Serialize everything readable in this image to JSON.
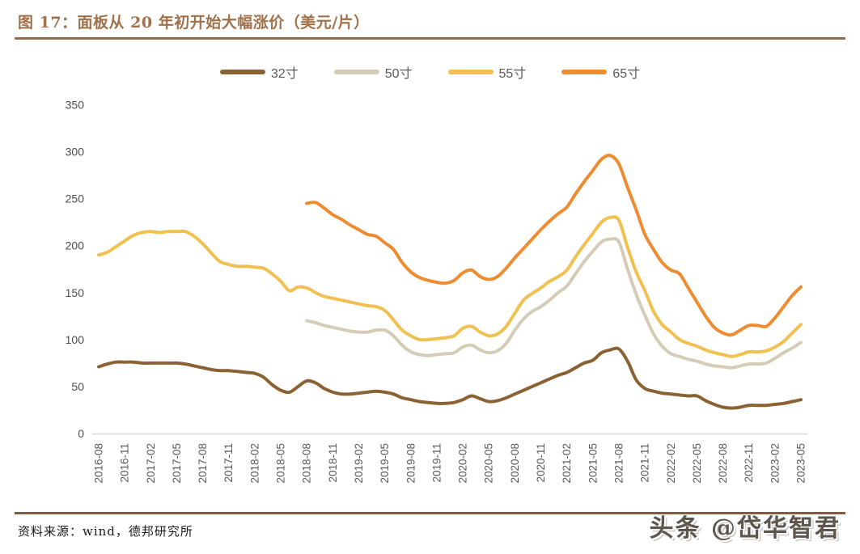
{
  "page": {
    "title": "图 17：面板从 20 年初开始大幅涨价（美元/片）",
    "source_note": "资料来源：wind，德邦研究所",
    "watermark": "头条 @岱华智君"
  },
  "colors": {
    "title_text": "#a0714a",
    "title_rule": "#8f6b4a",
    "footer_rule": "#7e5c43",
    "axis_text": "#595959",
    "axis_line": "#d9d9d9",
    "series_32": "#8b6234",
    "series_50": "#d5ccb6",
    "series_55": "#f0c050",
    "series_65": "#ee8c31"
  },
  "chart_data": {
    "type": "line",
    "title": "图 17：面板从 20 年初开始大幅涨价（美元/片）",
    "xlabel": "",
    "ylabel": "",
    "unit": "美元/片",
    "ylim": [
      0,
      350
    ],
    "y_ticks": [
      0,
      50,
      100,
      150,
      200,
      250,
      300,
      350
    ],
    "grid": false,
    "legend_position": "top",
    "x_tick_every": 3,
    "x_tick_labels": [
      "2016-08",
      "2016-11",
      "2017-02",
      "2017-05",
      "2017-08",
      "2017-11",
      "2018-02",
      "2018-05",
      "2018-08",
      "2018-11",
      "2019-02",
      "2019-05",
      "2019-08",
      "2019-11",
      "2020-02",
      "2020-05",
      "2020-08",
      "2020-11",
      "2021-02",
      "2021-05",
      "2021-08",
      "2021-11",
      "2022-02",
      "2022-05",
      "2022-08",
      "2022-11",
      "2023-02",
      "2023-05"
    ],
    "x": [
      "2016-08",
      "2016-09",
      "2016-10",
      "2016-11",
      "2016-12",
      "2017-01",
      "2017-02",
      "2017-03",
      "2017-04",
      "2017-05",
      "2017-06",
      "2017-07",
      "2017-08",
      "2017-09",
      "2017-10",
      "2017-11",
      "2017-12",
      "2018-01",
      "2018-02",
      "2018-03",
      "2018-04",
      "2018-05",
      "2018-06",
      "2018-07",
      "2018-08",
      "2018-09",
      "2018-10",
      "2018-11",
      "2018-12",
      "2019-01",
      "2019-02",
      "2019-03",
      "2019-04",
      "2019-05",
      "2019-06",
      "2019-07",
      "2019-08",
      "2019-09",
      "2019-10",
      "2019-11",
      "2019-12",
      "2020-01",
      "2020-02",
      "2020-03",
      "2020-04",
      "2020-05",
      "2020-06",
      "2020-07",
      "2020-08",
      "2020-09",
      "2020-10",
      "2020-11",
      "2020-12",
      "2021-01",
      "2021-02",
      "2021-03",
      "2021-04",
      "2021-05",
      "2021-06",
      "2021-07",
      "2021-08",
      "2021-09",
      "2021-10",
      "2021-11",
      "2021-12",
      "2022-01",
      "2022-02",
      "2022-03",
      "2022-04",
      "2022-05",
      "2022-06",
      "2022-07",
      "2022-08",
      "2022-09",
      "2022-10",
      "2022-11",
      "2022-12",
      "2023-01",
      "2023-02",
      "2023-03",
      "2023-04",
      "2023-05"
    ],
    "series": [
      {
        "name": "32寸",
        "color": "#8b6234",
        "values": [
          71,
          74,
          76,
          76,
          76,
          75,
          75,
          75,
          75,
          75,
          74,
          72,
          70,
          68,
          67,
          67,
          66,
          65,
          64,
          60,
          52,
          46,
          44,
          50,
          56,
          54,
          48,
          44,
          42,
          42,
          43,
          44,
          45,
          44,
          42,
          38,
          36,
          34,
          33,
          32,
          32,
          33,
          36,
          40,
          37,
          34,
          35,
          38,
          42,
          46,
          50,
          54,
          58,
          62,
          65,
          70,
          75,
          78,
          86,
          89,
          90,
          77,
          57,
          48,
          45,
          43,
          42,
          41,
          40,
          40,
          35,
          31,
          28,
          27,
          28,
          30,
          30,
          30,
          31,
          32,
          34,
          36
        ]
      },
      {
        "name": "50寸",
        "color": "#d5ccb6",
        "values": [
          null,
          null,
          null,
          null,
          null,
          null,
          null,
          null,
          null,
          null,
          null,
          null,
          null,
          null,
          null,
          null,
          null,
          null,
          null,
          null,
          null,
          null,
          null,
          null,
          120,
          118,
          115,
          113,
          111,
          109,
          108,
          108,
          110,
          110,
          104,
          94,
          87,
          84,
          83,
          84,
          85,
          86,
          92,
          94,
          89,
          86,
          88,
          96,
          110,
          122,
          130,
          135,
          142,
          150,
          157,
          170,
          183,
          194,
          204,
          207,
          204,
          175,
          148,
          126,
          106,
          93,
          85,
          82,
          79,
          77,
          74,
          72,
          71,
          70,
          72,
          74,
          74,
          75,
          80,
          86,
          91,
          97
        ]
      },
      {
        "name": "55寸",
        "color": "#f0c050",
        "values": [
          190,
          193,
          199,
          205,
          211,
          214,
          215,
          214,
          215,
          215,
          215,
          210,
          202,
          192,
          183,
          180,
          178,
          178,
          177,
          176,
          170,
          162,
          152,
          156,
          155,
          150,
          146,
          144,
          142,
          140,
          138,
          136,
          135,
          131,
          121,
          110,
          104,
          100,
          100,
          101,
          102,
          104,
          112,
          114,
          108,
          104,
          106,
          114,
          128,
          142,
          149,
          155,
          162,
          167,
          174,
          188,
          201,
          213,
          225,
          230,
          227,
          198,
          172,
          152,
          130,
          116,
          108,
          100,
          96,
          93,
          89,
          86,
          84,
          82,
          84,
          87,
          87,
          88,
          92,
          98,
          107,
          116
        ]
      },
      {
        "name": "65寸",
        "color": "#ee8c31",
        "values": [
          null,
          null,
          null,
          null,
          null,
          null,
          null,
          null,
          null,
          null,
          null,
          null,
          null,
          null,
          null,
          null,
          null,
          null,
          null,
          null,
          null,
          null,
          null,
          null,
          245,
          246,
          240,
          233,
          228,
          222,
          217,
          212,
          210,
          203,
          196,
          182,
          172,
          166,
          163,
          161,
          160,
          163,
          171,
          174,
          167,
          164,
          167,
          176,
          187,
          197,
          207,
          217,
          226,
          234,
          241,
          255,
          268,
          280,
          292,
          296,
          287,
          262,
          238,
          212,
          196,
          182,
          174,
          170,
          155,
          140,
          125,
          113,
          107,
          105,
          110,
          115,
          115,
          114,
          123,
          135,
          147,
          156
        ]
      }
    ]
  }
}
